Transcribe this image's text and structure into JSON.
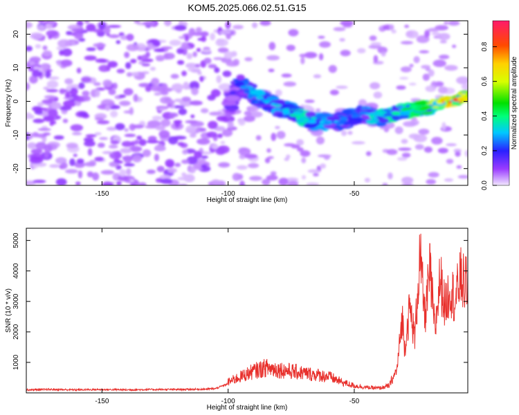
{
  "title": "KOM5.2025.066.02.51.G15",
  "chart_data": [
    {
      "type": "heatmap",
      "title": "KOM5.2025.066.02.51.G15",
      "xlabel": "Height of straight line (km)",
      "ylabel": "Frequency (Hz)",
      "xlim": [
        -180,
        -5
      ],
      "ylim": [
        -25,
        24
      ],
      "xticks": [
        -150,
        -100,
        -50
      ],
      "yticks": [
        -20,
        -10,
        0,
        10,
        20
      ],
      "colorbar": {
        "label": "Normalized spectral amplitude",
        "range": [
          0,
          0.95
        ],
        "ticks": [
          0.0,
          0.2,
          0.4,
          0.6,
          0.8
        ]
      },
      "ridge": {
        "x": [
          -180,
          -150,
          -120,
          -100,
          -95,
          -90,
          -85,
          -80,
          -75,
          -70,
          -65,
          -60,
          -55,
          -50,
          -45,
          -40,
          -35,
          -30,
          -25,
          -20,
          -15,
          -10,
          -5
        ],
        "frequency": [
          -2,
          -2,
          -2,
          -2,
          5,
          2,
          0,
          -2,
          -3,
          -5,
          -6,
          -6,
          -6,
          -4,
          -4,
          -5,
          -4,
          -3,
          -2,
          -2,
          0,
          0,
          2
        ],
        "amplitude": [
          0.05,
          0.05,
          0.06,
          0.1,
          0.25,
          0.3,
          0.3,
          0.3,
          0.35,
          0.4,
          0.3,
          0.3,
          0.25,
          0.25,
          0.3,
          0.35,
          0.4,
          0.45,
          0.45,
          0.5,
          0.75,
          0.85,
          0.6
        ]
      },
      "grid": false
    },
    {
      "type": "line",
      "xlabel": "Height of straight line (km)",
      "ylabel": "SNR (10 * v/v)",
      "xlim": [
        -180,
        -5
      ],
      "ylim": [
        0,
        5400
      ],
      "xticks": [
        -150,
        -100,
        -50
      ],
      "yticks": [
        1000,
        2000,
        3000,
        4000,
        5000
      ],
      "color": "#e8302c",
      "series": [
        {
          "x": [
            -180,
            -170,
            -160,
            -150,
            -140,
            -130,
            -120,
            -110,
            -105,
            -100,
            -95,
            -90,
            -85,
            -80,
            -75,
            -70,
            -65,
            -60,
            -55,
            -50,
            -45,
            -40,
            -36,
            -33,
            -31,
            -30,
            -28,
            -26,
            -24,
            -22,
            -20,
            -18,
            -16,
            -14,
            -12,
            -10,
            -8,
            -6,
            -5
          ],
          "values": [
            100,
            110,
            100,
            110,
            100,
            110,
            110,
            120,
            140,
            300,
            450,
            600,
            700,
            650,
            600,
            550,
            500,
            450,
            300,
            200,
            150,
            130,
            200,
            800,
            2500,
            1500,
            2800,
            1800,
            4500,
            2500,
            4000,
            2000,
            3800,
            2800,
            3500,
            3000,
            3800,
            3500,
            3800
          ]
        }
      ],
      "grid": false
    }
  ]
}
